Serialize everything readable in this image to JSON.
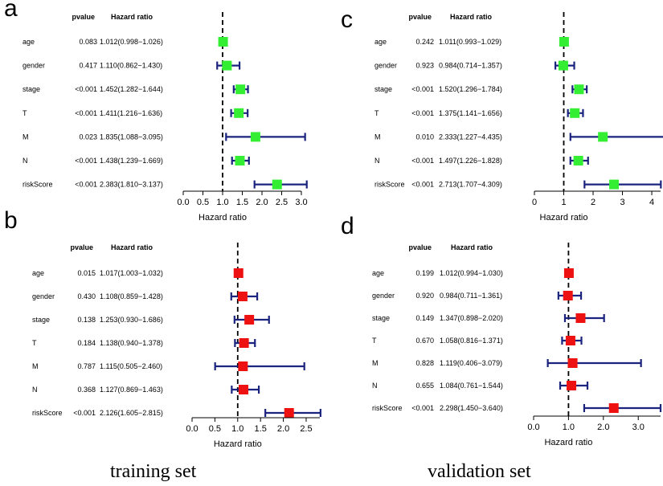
{
  "captions": {
    "left": "training set",
    "right": "validation set"
  },
  "colors": {
    "ci_line": "#1a237e",
    "panel_a_marker": "#33ee33",
    "panel_c_marker": "#33ee33",
    "panel_b_marker": "#ee1111",
    "panel_d_marker": "#ee1111",
    "reference_line": "#000000"
  },
  "chart_data": [
    {
      "panel": "a",
      "type": "forest",
      "set": "training",
      "header_pvalue": "pvalue",
      "header_hr": "Hazard ratio",
      "xlabel": "Hazard ratio",
      "xlim": [
        0,
        3.0
      ],
      "reference": 1.0,
      "ticks": [
        0,
        0.5,
        1.0,
        1.5,
        2.0,
        2.5,
        3.0
      ],
      "tick_labels": [
        "0.0",
        "0.5",
        "1.0",
        "1.5",
        "2.0",
        "2.5",
        "3.0"
      ],
      "rows": [
        {
          "label": "age",
          "pvalue": "0.083",
          "hr_text": "1.012(0.998−1.026)",
          "hr": 1.012,
          "lo": 0.998,
          "hi": 1.026
        },
        {
          "label": "gender",
          "pvalue": "0.417",
          "hr_text": "1.110(0.862−1.430)",
          "hr": 1.11,
          "lo": 0.862,
          "hi": 1.43
        },
        {
          "label": "stage",
          "pvalue": "<0.001",
          "hr_text": "1.452(1.282−1.644)",
          "hr": 1.452,
          "lo": 1.282,
          "hi": 1.644
        },
        {
          "label": "T",
          "pvalue": "<0.001",
          "hr_text": "1.411(1.216−1.636)",
          "hr": 1.411,
          "lo": 1.216,
          "hi": 1.636
        },
        {
          "label": "M",
          "pvalue": "0.023",
          "hr_text": "1.835(1.088−3.095)",
          "hr": 1.835,
          "lo": 1.088,
          "hi": 3.095
        },
        {
          "label": "N",
          "pvalue": "<0.001",
          "hr_text": "1.438(1.239−1.669)",
          "hr": 1.438,
          "lo": 1.239,
          "hi": 1.669
        },
        {
          "label": "riskScore",
          "pvalue": "<0.001",
          "hr_text": "2.383(1.810−3.137)",
          "hr": 2.383,
          "lo": 1.81,
          "hi": 3.137
        }
      ]
    },
    {
      "panel": "c",
      "type": "forest",
      "set": "validation",
      "header_pvalue": "pvalue",
      "header_hr": "Hazard ratio",
      "xlabel": "Hazard ratio",
      "xlim": [
        0,
        4.3
      ],
      "reference": 1.0,
      "ticks": [
        0,
        1,
        2,
        3,
        4
      ],
      "tick_labels": [
        "0",
        "1",
        "2",
        "3",
        "4"
      ],
      "rows": [
        {
          "label": "age",
          "pvalue": "0.242",
          "hr_text": "1.011(0.993−1.029)",
          "hr": 1.011,
          "lo": 0.993,
          "hi": 1.029
        },
        {
          "label": "gender",
          "pvalue": "0.923",
          "hr_text": "0.984(0.714−1.357)",
          "hr": 0.984,
          "lo": 0.714,
          "hi": 1.357
        },
        {
          "label": "stage",
          "pvalue": "<0.001",
          "hr_text": "1.520(1.296−1.784)",
          "hr": 1.52,
          "lo": 1.296,
          "hi": 1.784
        },
        {
          "label": "T",
          "pvalue": "<0.001",
          "hr_text": "1.375(1.141−1.656)",
          "hr": 1.375,
          "lo": 1.141,
          "hi": 1.656
        },
        {
          "label": "M",
          "pvalue": "0.010",
          "hr_text": "2.333(1.227−4.435)",
          "hr": 2.333,
          "lo": 1.227,
          "hi": 4.435
        },
        {
          "label": "N",
          "pvalue": "<0.001",
          "hr_text": "1.497(1.226−1.828)",
          "hr": 1.497,
          "lo": 1.226,
          "hi": 1.828
        },
        {
          "label": "riskScore",
          "pvalue": "<0.001",
          "hr_text": "2.713(1.707−4.309)",
          "hr": 2.713,
          "lo": 1.707,
          "hi": 4.309
        }
      ]
    },
    {
      "panel": "b",
      "type": "forest",
      "set": "training",
      "header_pvalue": "pvalue",
      "header_hr": "Hazard ratio",
      "xlabel": "Hazard ratio",
      "xlim": [
        0,
        2.8
      ],
      "reference": 1.0,
      "ticks": [
        0,
        0.5,
        1.0,
        1.5,
        2.0,
        2.5
      ],
      "tick_labels": [
        "0.0",
        "0.5",
        "1.0",
        "1.5",
        "2.0",
        "2.5"
      ],
      "rows": [
        {
          "label": "age",
          "pvalue": "0.015",
          "hr_text": "1.017(1.003−1.032)",
          "hr": 1.017,
          "lo": 1.003,
          "hi": 1.032
        },
        {
          "label": "gender",
          "pvalue": "0.430",
          "hr_text": "1.108(0.859−1.428)",
          "hr": 1.108,
          "lo": 0.859,
          "hi": 1.428
        },
        {
          "label": "stage",
          "pvalue": "0.138",
          "hr_text": "1.253(0.930−1.686)",
          "hr": 1.253,
          "lo": 0.93,
          "hi": 1.686
        },
        {
          "label": "T",
          "pvalue": "0.184",
          "hr_text": "1.138(0.940−1.378)",
          "hr": 1.138,
          "lo": 0.94,
          "hi": 1.378
        },
        {
          "label": "M",
          "pvalue": "0.787",
          "hr_text": "1.115(0.505−2.460)",
          "hr": 1.115,
          "lo": 0.505,
          "hi": 2.46
        },
        {
          "label": "N",
          "pvalue": "0.368",
          "hr_text": "1.127(0.869−1.463)",
          "hr": 1.127,
          "lo": 0.869,
          "hi": 1.463
        },
        {
          "label": "riskScore",
          "pvalue": "<0.001",
          "hr_text": "2.126(1.605−2.815)",
          "hr": 2.126,
          "lo": 1.605,
          "hi": 2.815
        }
      ]
    },
    {
      "panel": "d",
      "type": "forest",
      "set": "validation",
      "header_pvalue": "pvalue",
      "header_hr": "Hazard ratio",
      "xlabel": "Hazard ratio",
      "xlim": [
        0,
        3.64
      ],
      "reference": 1.0,
      "ticks": [
        0,
        1.0,
        2.0,
        3.0
      ],
      "tick_labels": [
        "0.0",
        "1.0",
        "2.0",
        "3.0"
      ],
      "rows": [
        {
          "label": "age",
          "pvalue": "0.199",
          "hr_text": "1.012(0.994−1.030)",
          "hr": 1.012,
          "lo": 0.994,
          "hi": 1.03
        },
        {
          "label": "gender",
          "pvalue": "0.920",
          "hr_text": "0.984(0.711−1.361)",
          "hr": 0.984,
          "lo": 0.711,
          "hi": 1.361
        },
        {
          "label": "stage",
          "pvalue": "0.149",
          "hr_text": "1.347(0.898−2.020)",
          "hr": 1.347,
          "lo": 0.898,
          "hi": 2.02
        },
        {
          "label": "T",
          "pvalue": "0.670",
          "hr_text": "1.058(0.816−1.371)",
          "hr": 1.058,
          "lo": 0.816,
          "hi": 1.371
        },
        {
          "label": "M",
          "pvalue": "0.828",
          "hr_text": "1.119(0.406−3.079)",
          "hr": 1.119,
          "lo": 0.406,
          "hi": 3.079
        },
        {
          "label": "N",
          "pvalue": "0.655",
          "hr_text": "1.084(0.761−1.544)",
          "hr": 1.084,
          "lo": 0.761,
          "hi": 1.544
        },
        {
          "label": "riskScore",
          "pvalue": "<0.001",
          "hr_text": "2.298(1.450−3.640)",
          "hr": 2.298,
          "lo": 1.45,
          "hi": 3.64
        }
      ]
    }
  ]
}
